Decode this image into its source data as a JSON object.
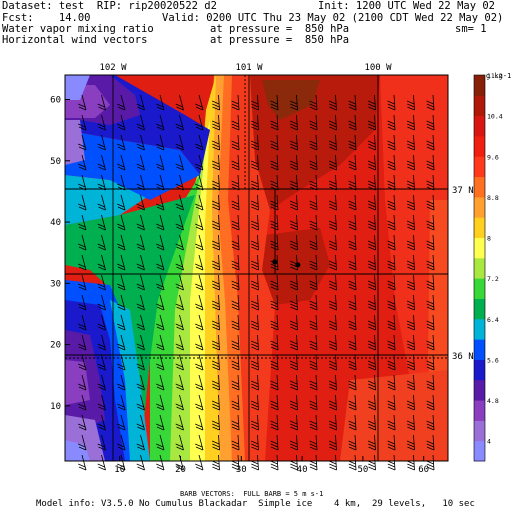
{
  "header": {
    "dataset_line": "Dataset: test  RIP: rip20020522 d2",
    "init_line": "Init: 1200 UTC Wed 22 May 02",
    "fcst_line": "Fcst:    14.00",
    "valid_line": "Valid: 0200 UTC Thu 23 May 02 (2100 CDT Wed 22 May 02)",
    "field1_line": "Water vapor mixing ratio",
    "field1_pressure": "at pressure =  850 hPa",
    "sm_line": "sm= 1",
    "field2_line": "Horizontal wind vectors",
    "field2_pressure": "at pressure =  850 hPa"
  },
  "map": {
    "longitude_labels": [
      "102 W",
      "101 W",
      "100 W"
    ],
    "latitude_labels": [
      "37 N",
      "36 N"
    ],
    "x_ticks": [
      "10",
      "20",
      "30",
      "40",
      "50",
      "60"
    ],
    "y_ticks": [
      "10",
      "20",
      "30",
      "40",
      "50",
      "60"
    ],
    "x_range": [
      1,
      64
    ],
    "y_range": [
      1,
      64
    ],
    "markers": [
      {
        "x": 35.5,
        "y": 33.5
      },
      {
        "x": 39.3,
        "y": 33.0
      }
    ]
  },
  "colorbar": {
    "unit_label": "g kg-1",
    "tick_labels": [
      "4",
      "4.8",
      "5.6",
      "6.4",
      "7.2",
      "8",
      "8.8",
      "9.6",
      "10.4",
      "11.2"
    ],
    "colors": [
      "#8a8aff",
      "#9a70d8",
      "#8a3ec0",
      "#5a1aa8",
      "#1a1acc",
      "#0050ff",
      "#00b4d8",
      "#00b050",
      "#38d838",
      "#a8e840",
      "#ffff50",
      "#ffd020",
      "#ffa030",
      "#ff7020",
      "#ff3a1a",
      "#f02010",
      "#d81810",
      "#b01808",
      "#882008"
    ]
  },
  "footer": {
    "barb_line": "BARB VECTORS:  FULL BARB = 5 m s-1",
    "model_line": "Model info: V3.5.0 No Cumulus Blackadar  Simple ice    4 km,  29 levels,   10 sec"
  }
}
